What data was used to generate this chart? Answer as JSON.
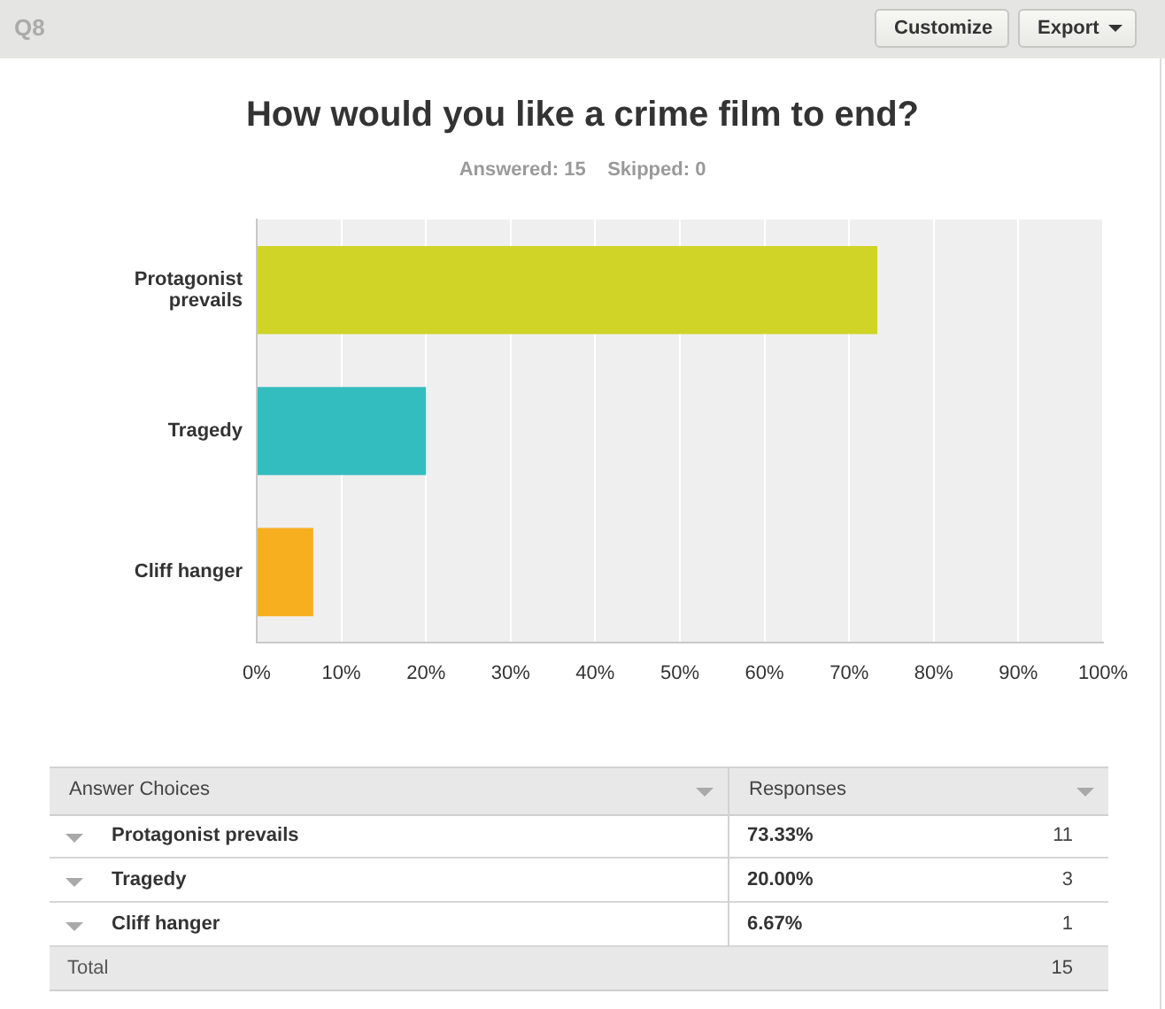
{
  "chart_data": {
    "type": "bar",
    "orientation": "horizontal",
    "title": "How would you like a crime film to end?",
    "subtitle": "Answered: 15    Skipped: 0",
    "categories": [
      "Protagonist prevails",
      "Tragedy",
      "Cliff hanger"
    ],
    "values": [
      73.33,
      20,
      6.67
    ],
    "colors": [
      "#cfd427",
      "#33bdbf",
      "#f7ae1f"
    ],
    "xlim": [
      0,
      100
    ],
    "xticks": [
      {
        "value": 0,
        "label": "0%"
      },
      {
        "value": 10,
        "label": "10%"
      },
      {
        "value": 20,
        "label": "20%"
      },
      {
        "value": 30,
        "label": "30%"
      },
      {
        "value": 40,
        "label": "40%"
      },
      {
        "value": 50,
        "label": "50%"
      },
      {
        "value": 60,
        "label": "60%"
      },
      {
        "value": 70,
        "label": "70%"
      },
      {
        "value": 80,
        "label": "80%"
      },
      {
        "value": 90,
        "label": "90%"
      },
      {
        "value": 100,
        "label": "100%"
      }
    ],
    "grid": "x",
    "annotations": [
      "Q8",
      "Customize",
      "Export",
      "Answer Choices",
      "Responses",
      "73.33%",
      "11",
      "20.00%",
      "3",
      "6.67%",
      "1",
      "Total",
      "15"
    ]
  }
}
